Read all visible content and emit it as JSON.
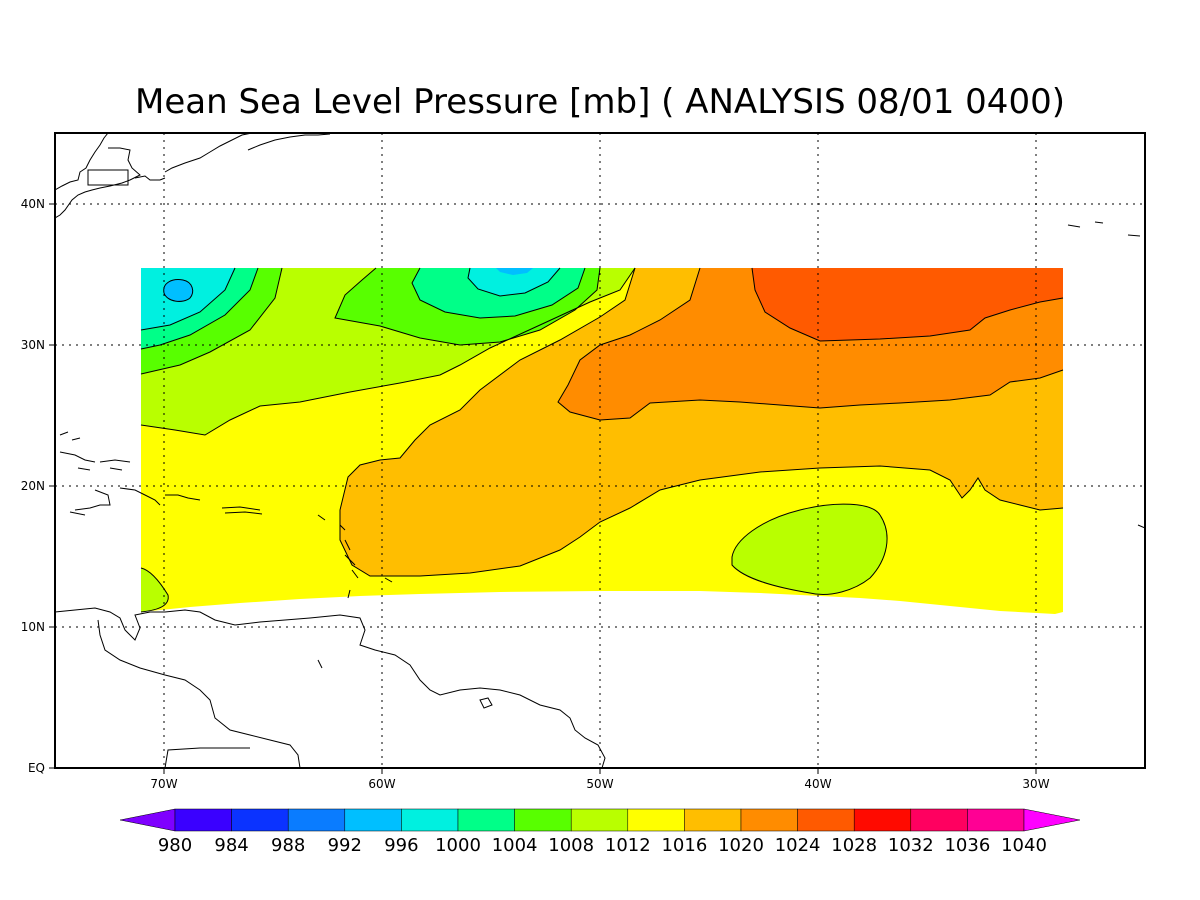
{
  "title": "Mean Sea Level Pressure [mb] ( ANALYSIS 08/01 0400)",
  "axes": {
    "lat_labels": [
      "EQ",
      "10N",
      "20N",
      "30N",
      "40N"
    ],
    "lon_labels": [
      "70W",
      "60W",
      "50W",
      "40W",
      "30W"
    ]
  },
  "colorbar": {
    "labels": [
      "980",
      "984",
      "988",
      "992",
      "996",
      "1000",
      "1004",
      "1008",
      "1012",
      "1016",
      "1020",
      "1024",
      "1028",
      "1032",
      "1036",
      "1040"
    ],
    "colors": [
      "#7f00ff",
      "#3a00ff",
      "#0b33ff",
      "#0a7cff",
      "#00bfff",
      "#00f0e0",
      "#00ff88",
      "#58ff00",
      "#b9ff00",
      "#ffff00",
      "#ffbe00",
      "#ff8c00",
      "#ff5a00",
      "#ff0a00",
      "#ff0060",
      "#ff0094",
      "#ff00ff"
    ]
  },
  "chart_data": {
    "type": "heatmap",
    "variable": "Mean Sea Level Pressure",
    "units": "mb",
    "lon_range": [
      -75,
      -25
    ],
    "lat_range": [
      0,
      45
    ],
    "contour_levels": [
      980,
      984,
      988,
      992,
      996,
      1000,
      1004,
      1008,
      1012,
      1016,
      1020,
      1024,
      1028,
      1032,
      1036,
      1040
    ],
    "grid": true,
    "features": [
      {
        "kind": "low",
        "value_range": [
          992,
          996
        ],
        "lon": -69,
        "lat": 34
      },
      {
        "kind": "low",
        "value_range": [
          996,
          1000
        ],
        "lon": -54,
        "lat": 35
      },
      {
        "kind": "high",
        "value_range": [
          1024,
          1028
        ],
        "lon": -38,
        "lat": 33
      },
      {
        "kind": "relative_low",
        "value_range": [
          1012,
          1016
        ],
        "lon": -40,
        "lat": 16
      }
    ]
  }
}
